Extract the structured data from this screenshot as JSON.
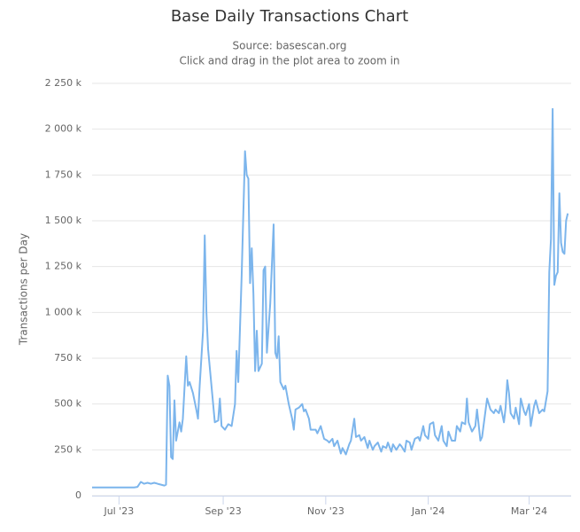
{
  "chart_data": {
    "type": "line",
    "title": "Base Daily Transactions Chart",
    "subtitle": [
      "Source: basescan.org",
      "Click and drag in the plot area to zoom in"
    ],
    "y_label": "Transactions per Day",
    "color": "#7cb5ec",
    "grid": true,
    "xlim": [
      0,
      285
    ],
    "xticks": [
      {
        "value": 16,
        "label": "Jul '23"
      },
      {
        "value": 78,
        "label": "Sep '23"
      },
      {
        "value": 139,
        "label": "Nov '23"
      },
      {
        "value": 200,
        "label": "Jan '24"
      },
      {
        "value": 260,
        "label": "Mar '24"
      }
    ],
    "ylim": [
      0,
      2250
    ],
    "yticks": [
      0,
      {
        "value": 250,
        "label": "250 k"
      },
      {
        "value": 500,
        "label": "500 k"
      },
      {
        "value": 750,
        "label": "750 k"
      },
      {
        "value": 1000,
        "label": "1 000 k"
      },
      {
        "value": 1250,
        "label": "1 250 k"
      },
      {
        "value": 1500,
        "label": "1 500 k"
      },
      {
        "value": 1750,
        "label": "1 750 k"
      },
      {
        "value": 2000,
        "label": "2 000 k"
      },
      {
        "value": 2250,
        "label": "2 250 k"
      }
    ],
    "x": [
      0,
      5,
      10,
      15,
      20,
      25,
      27,
      29,
      31,
      33,
      35,
      37,
      39,
      41,
      43,
      44,
      45,
      46,
      47,
      48,
      49,
      50,
      52,
      53,
      54,
      56,
      57,
      58,
      60,
      62,
      63,
      64,
      66,
      67,
      68,
      69,
      70,
      72,
      73,
      75,
      76,
      77,
      79,
      81,
      83,
      85,
      86,
      87,
      89,
      91,
      92,
      93,
      94,
      95,
      96,
      97,
      98,
      99,
      101,
      102,
      103,
      104,
      106,
      108,
      109,
      110,
      111,
      112,
      114,
      115,
      117,
      119,
      120,
      121,
      123,
      125,
      126,
      127,
      129,
      130,
      133,
      134,
      136,
      138,
      140,
      141,
      143,
      144,
      146,
      148,
      149,
      151,
      153,
      154,
      156,
      157,
      159,
      160,
      162,
      164,
      165,
      167,
      168,
      170,
      172,
      173,
      175,
      176,
      178,
      179,
      181,
      183,
      184,
      186,
      187,
      189,
      190,
      192,
      194,
      195,
      197,
      198,
      200,
      201,
      203,
      204,
      206,
      208,
      209,
      211,
      212,
      214,
      216,
      217,
      219,
      220,
      222,
      223,
      224,
      226,
      228,
      229,
      231,
      232,
      234,
      235,
      237,
      239,
      240,
      242,
      243,
      245,
      246,
      247,
      248,
      249,
      251,
      252,
      254,
      255,
      257,
      258,
      260,
      261,
      263,
      264,
      266,
      268,
      269,
      271,
      272,
      273,
      274,
      275,
      276,
      277,
      278,
      279,
      280,
      281,
      282,
      283
    ],
    "values": [
      45,
      45,
      45,
      45,
      45,
      45,
      48,
      75,
      65,
      70,
      65,
      70,
      65,
      60,
      55,
      60,
      655,
      600,
      210,
      200,
      520,
      300,
      400,
      350,
      420,
      760,
      600,
      620,
      560,
      470,
      420,
      600,
      900,
      1420,
      1000,
      800,
      700,
      500,
      400,
      410,
      530,
      380,
      360,
      390,
      380,
      500,
      790,
      620,
      1200,
      1880,
      1750,
      1730,
      1160,
      1350,
      1100,
      680,
      900,
      680,
      720,
      1230,
      1250,
      780,
      1050,
      1480,
      780,
      750,
      870,
      620,
      580,
      600,
      500,
      420,
      360,
      470,
      480,
      500,
      460,
      470,
      420,
      360,
      360,
      340,
      380,
      310,
      300,
      290,
      310,
      270,
      300,
      230,
      260,
      225,
      280,
      300,
      420,
      320,
      330,
      300,
      320,
      260,
      300,
      250,
      270,
      290,
      240,
      270,
      260,
      290,
      240,
      280,
      250,
      280,
      270,
      240,
      300,
      290,
      250,
      310,
      320,
      300,
      380,
      330,
      310,
      390,
      400,
      330,
      300,
      380,
      300,
      270,
      350,
      300,
      300,
      380,
      350,
      400,
      390,
      530,
      400,
      350,
      380,
      470,
      300,
      320,
      460,
      530,
      470,
      450,
      470,
      450,
      490,
      400,
      480,
      630,
      560,
      450,
      420,
      480,
      390,
      530,
      460,
      440,
      500,
      380,
      490,
      520,
      450,
      470,
      460,
      570,
      1220,
      1400,
      2110,
      1150,
      1200,
      1220,
      1650,
      1380,
      1330,
      1320,
      1500,
      1540
    ]
  }
}
